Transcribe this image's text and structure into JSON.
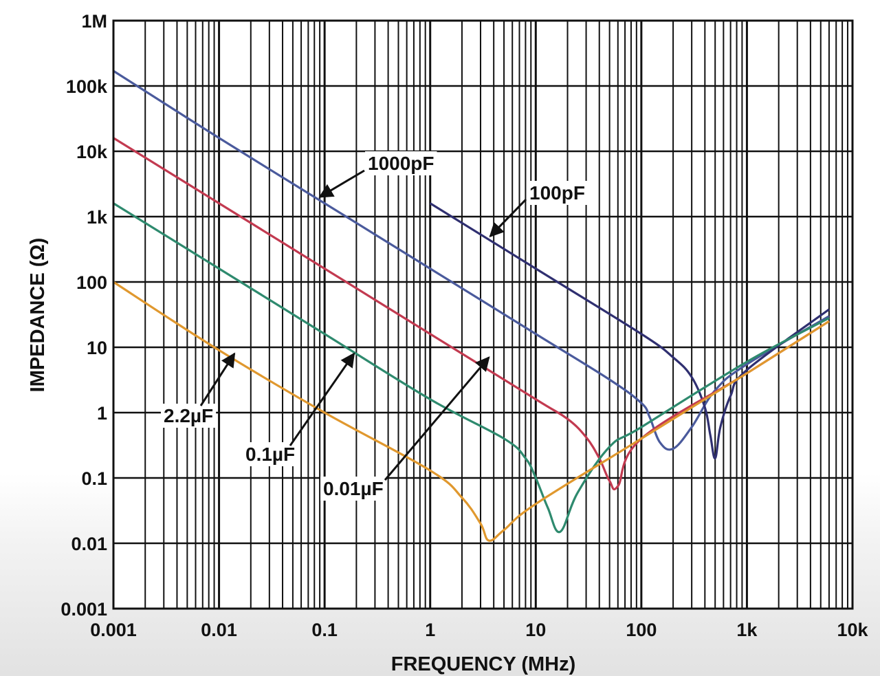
{
  "chart_data": {
    "type": "line",
    "title": "",
    "xlabel": "FREQUENCY (MHz)",
    "ylabel": "IMPEDANCE (Ω)",
    "xscale": "log",
    "yscale": "log",
    "xlim": [
      0.001,
      10000
    ],
    "ylim": [
      0.001,
      1000000
    ],
    "grid": true,
    "x_ticks": [
      "0.001",
      "0.01",
      "0.1",
      "1",
      "10",
      "100",
      "1k",
      "10k"
    ],
    "y_ticks": [
      "0.001",
      "0.01",
      "0.1",
      "1",
      "10",
      "100",
      "1k",
      "10k",
      "100k",
      "1M"
    ],
    "series": [
      {
        "name": "1000pF",
        "color": "#4a5a9c",
        "x": [
          0.001,
          0.01,
          0.1,
          1,
          10,
          50,
          100,
          120,
          150,
          200,
          300,
          500,
          1000,
          6000
        ],
        "y": [
          170000,
          16000,
          1600,
          160,
          16,
          3.2,
          1.4,
          0.85,
          0.35,
          0.28,
          0.6,
          2.2,
          5.5,
          30
        ]
      },
      {
        "name": "100pF",
        "color": "#2f2f70",
        "x": [
          1,
          10,
          100,
          200,
          300,
          400,
          450,
          500,
          560,
          700,
          1000,
          6000
        ],
        "y": [
          1600,
          160,
          16,
          7,
          3.5,
          1.2,
          0.45,
          0.2,
          0.6,
          1.8,
          4.5,
          38
        ]
      },
      {
        "name": "0.01µF",
        "color": "#c23a50",
        "x": [
          0.001,
          0.01,
          0.1,
          1,
          10,
          20,
          30,
          40,
          50,
          60,
          100,
          1000,
          6000
        ],
        "y": [
          16000,
          1600,
          160,
          16,
          1.6,
          0.8,
          0.42,
          0.2,
          0.09,
          0.075,
          0.4,
          4,
          25
        ]
      },
      {
        "name": "0.1µF",
        "color": "#2e8a6e",
        "x": [
          0.001,
          0.01,
          0.1,
          1,
          5,
          8,
          10,
          13,
          17,
          25,
          50,
          100,
          1000,
          6000
        ],
        "y": [
          1600,
          160,
          16,
          1.6,
          0.4,
          0.2,
          0.1,
          0.035,
          0.015,
          0.06,
          0.3,
          0.6,
          6,
          28
        ]
      },
      {
        "name": "2.2µF",
        "color": "#e0982e",
        "x": [
          0.001,
          0.01,
          0.1,
          1,
          2,
          3,
          3.6,
          5,
          10,
          100,
          1000,
          6000
        ],
        "y": [
          100,
          9,
          1,
          0.13,
          0.05,
          0.02,
          0.011,
          0.016,
          0.04,
          0.4,
          4,
          25
        ]
      }
    ],
    "annotations": [
      {
        "text": "1000pF",
        "series": "1000pF",
        "arrow_to": [
          0.09,
          2000
        ]
      },
      {
        "text": "100pF",
        "series": "100pF",
        "arrow_to": [
          3.7,
          500
        ]
      },
      {
        "text": "2.2µF",
        "series": "2.2µF",
        "arrow_to": [
          0.014,
          8
        ]
      },
      {
        "text": "0.1µF",
        "series": "0.1µF",
        "arrow_to": [
          0.19,
          8
        ]
      },
      {
        "text": "0.01µF",
        "series": "0.01µF",
        "arrow_to": [
          3.6,
          7
        ]
      }
    ]
  }
}
